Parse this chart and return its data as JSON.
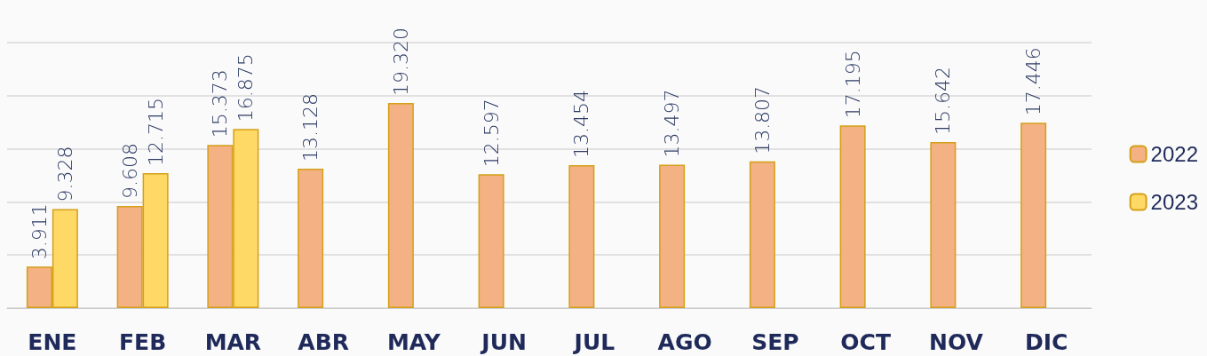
{
  "chart_data": {
    "type": "bar",
    "categories": [
      "ENE",
      "FEB",
      "MAR",
      "ABR",
      "MAY",
      "JUN",
      "JUL",
      "AGO",
      "SEP",
      "OCT",
      "NOV",
      "DIC"
    ],
    "series": [
      {
        "name": "2022",
        "color": "#f4b183",
        "values": [
          3.911,
          9.608,
          15.373,
          13.128,
          19.32,
          12.597,
          13.454,
          13.497,
          13.807,
          17.195,
          15.642,
          17.446
        ],
        "value_labels": [
          "3.911",
          "9.608",
          "15.373",
          "13.128",
          "19.320",
          "12.597",
          "13.454",
          "13.497",
          "13.807",
          "17.195",
          "15.642",
          "17.446"
        ]
      },
      {
        "name": "2023",
        "color": "#ffd966",
        "values": [
          9.328,
          12.715,
          16.875,
          null,
          null,
          null,
          null,
          null,
          null,
          null,
          null,
          null
        ],
        "value_labels": [
          "9.328",
          "12.715",
          "16.875",
          null,
          null,
          null,
          null,
          null,
          null,
          null,
          null,
          null
        ]
      }
    ],
    "ylim": [
      0,
      25
    ],
    "tick_labels": "x",
    "grid": "y",
    "legend": "right"
  }
}
